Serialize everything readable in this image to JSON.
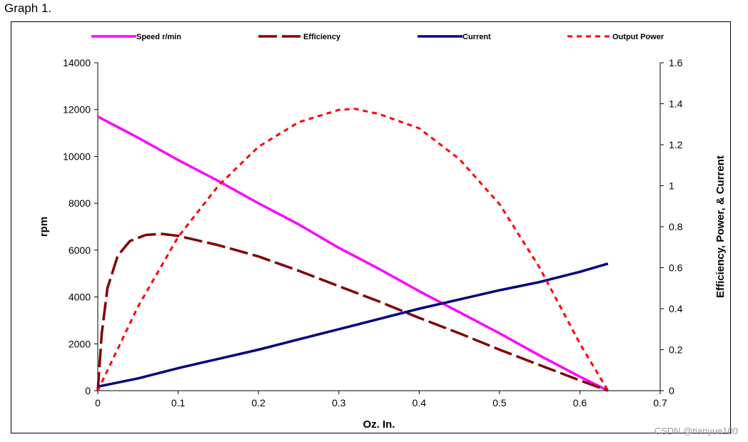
{
  "caption": "Graph 1.",
  "watermark": "CSDN @tianyue100",
  "colors": {
    "speed": "#ff00ff",
    "efficiency": "#800000",
    "current": "#000080",
    "power": "#ff0000"
  },
  "chart_data": {
    "type": "line",
    "xlabel": "Oz. In.",
    "ylabel": "rpm",
    "y2label": "Efficiency, Power, & Current",
    "xlim": [
      0,
      0.7
    ],
    "ylim": [
      0,
      14000
    ],
    "y2lim": [
      0,
      1.6
    ],
    "x_ticks": [
      "0",
      "0.1",
      "0.2",
      "0.3",
      "0.4",
      "0.5",
      "0.6",
      "0.7"
    ],
    "y_ticks": [
      "0",
      "2000",
      "4000",
      "6000",
      "8000",
      "10000",
      "12000",
      "14000"
    ],
    "y2_ticks": [
      "0",
      "0.2",
      "0.4",
      "0.6",
      "0.8",
      "1",
      "1.2",
      "1.4",
      "1.6"
    ],
    "legend_position": "top",
    "series": [
      {
        "name": "Speed r/min",
        "axis": "left",
        "style": "solid",
        "color_key": "speed",
        "points": [
          [
            0,
            11700
          ],
          [
            0.05,
            10800
          ],
          [
            0.1,
            9850
          ],
          [
            0.15,
            8950
          ],
          [
            0.2,
            8000
          ],
          [
            0.25,
            7100
          ],
          [
            0.3,
            6100
          ],
          [
            0.35,
            5200
          ],
          [
            0.4,
            4250
          ],
          [
            0.45,
            3350
          ],
          [
            0.5,
            2450
          ],
          [
            0.55,
            1500
          ],
          [
            0.6,
            600
          ],
          [
            0.635,
            0
          ]
        ]
      },
      {
        "name": "Efficiency",
        "axis": "right",
        "style": "longdash",
        "color_key": "efficiency",
        "points": [
          [
            0,
            0
          ],
          [
            0.005,
            0.28
          ],
          [
            0.012,
            0.5
          ],
          [
            0.025,
            0.66
          ],
          [
            0.04,
            0.73
          ],
          [
            0.06,
            0.76
          ],
          [
            0.08,
            0.765
          ],
          [
            0.1,
            0.755
          ],
          [
            0.15,
            0.71
          ],
          [
            0.2,
            0.655
          ],
          [
            0.25,
            0.585
          ],
          [
            0.3,
            0.51
          ],
          [
            0.35,
            0.435
          ],
          [
            0.4,
            0.355
          ],
          [
            0.45,
            0.28
          ],
          [
            0.5,
            0.2
          ],
          [
            0.55,
            0.125
          ],
          [
            0.6,
            0.05
          ],
          [
            0.635,
            0
          ]
        ]
      },
      {
        "name": "Current",
        "axis": "right",
        "style": "solid",
        "color_key": "current",
        "points": [
          [
            0,
            0.02
          ],
          [
            0.05,
            0.06
          ],
          [
            0.1,
            0.11
          ],
          [
            0.15,
            0.155
          ],
          [
            0.2,
            0.2
          ],
          [
            0.25,
            0.25
          ],
          [
            0.3,
            0.3
          ],
          [
            0.35,
            0.35
          ],
          [
            0.4,
            0.4
          ],
          [
            0.45,
            0.445
          ],
          [
            0.5,
            0.49
          ],
          [
            0.55,
            0.53
          ],
          [
            0.6,
            0.58
          ],
          [
            0.635,
            0.62
          ]
        ]
      },
      {
        "name": "Output Power",
        "axis": "right",
        "style": "shortdash",
        "color_key": "power",
        "points": [
          [
            0,
            0
          ],
          [
            0.05,
            0.41
          ],
          [
            0.1,
            0.75
          ],
          [
            0.15,
            1.0
          ],
          [
            0.2,
            1.19
          ],
          [
            0.25,
            1.31
          ],
          [
            0.3,
            1.37
          ],
          [
            0.32,
            1.375
          ],
          [
            0.35,
            1.35
          ],
          [
            0.4,
            1.28
          ],
          [
            0.45,
            1.13
          ],
          [
            0.5,
            0.91
          ],
          [
            0.55,
            0.6
          ],
          [
            0.6,
            0.23
          ],
          [
            0.635,
            0
          ]
        ]
      }
    ]
  }
}
